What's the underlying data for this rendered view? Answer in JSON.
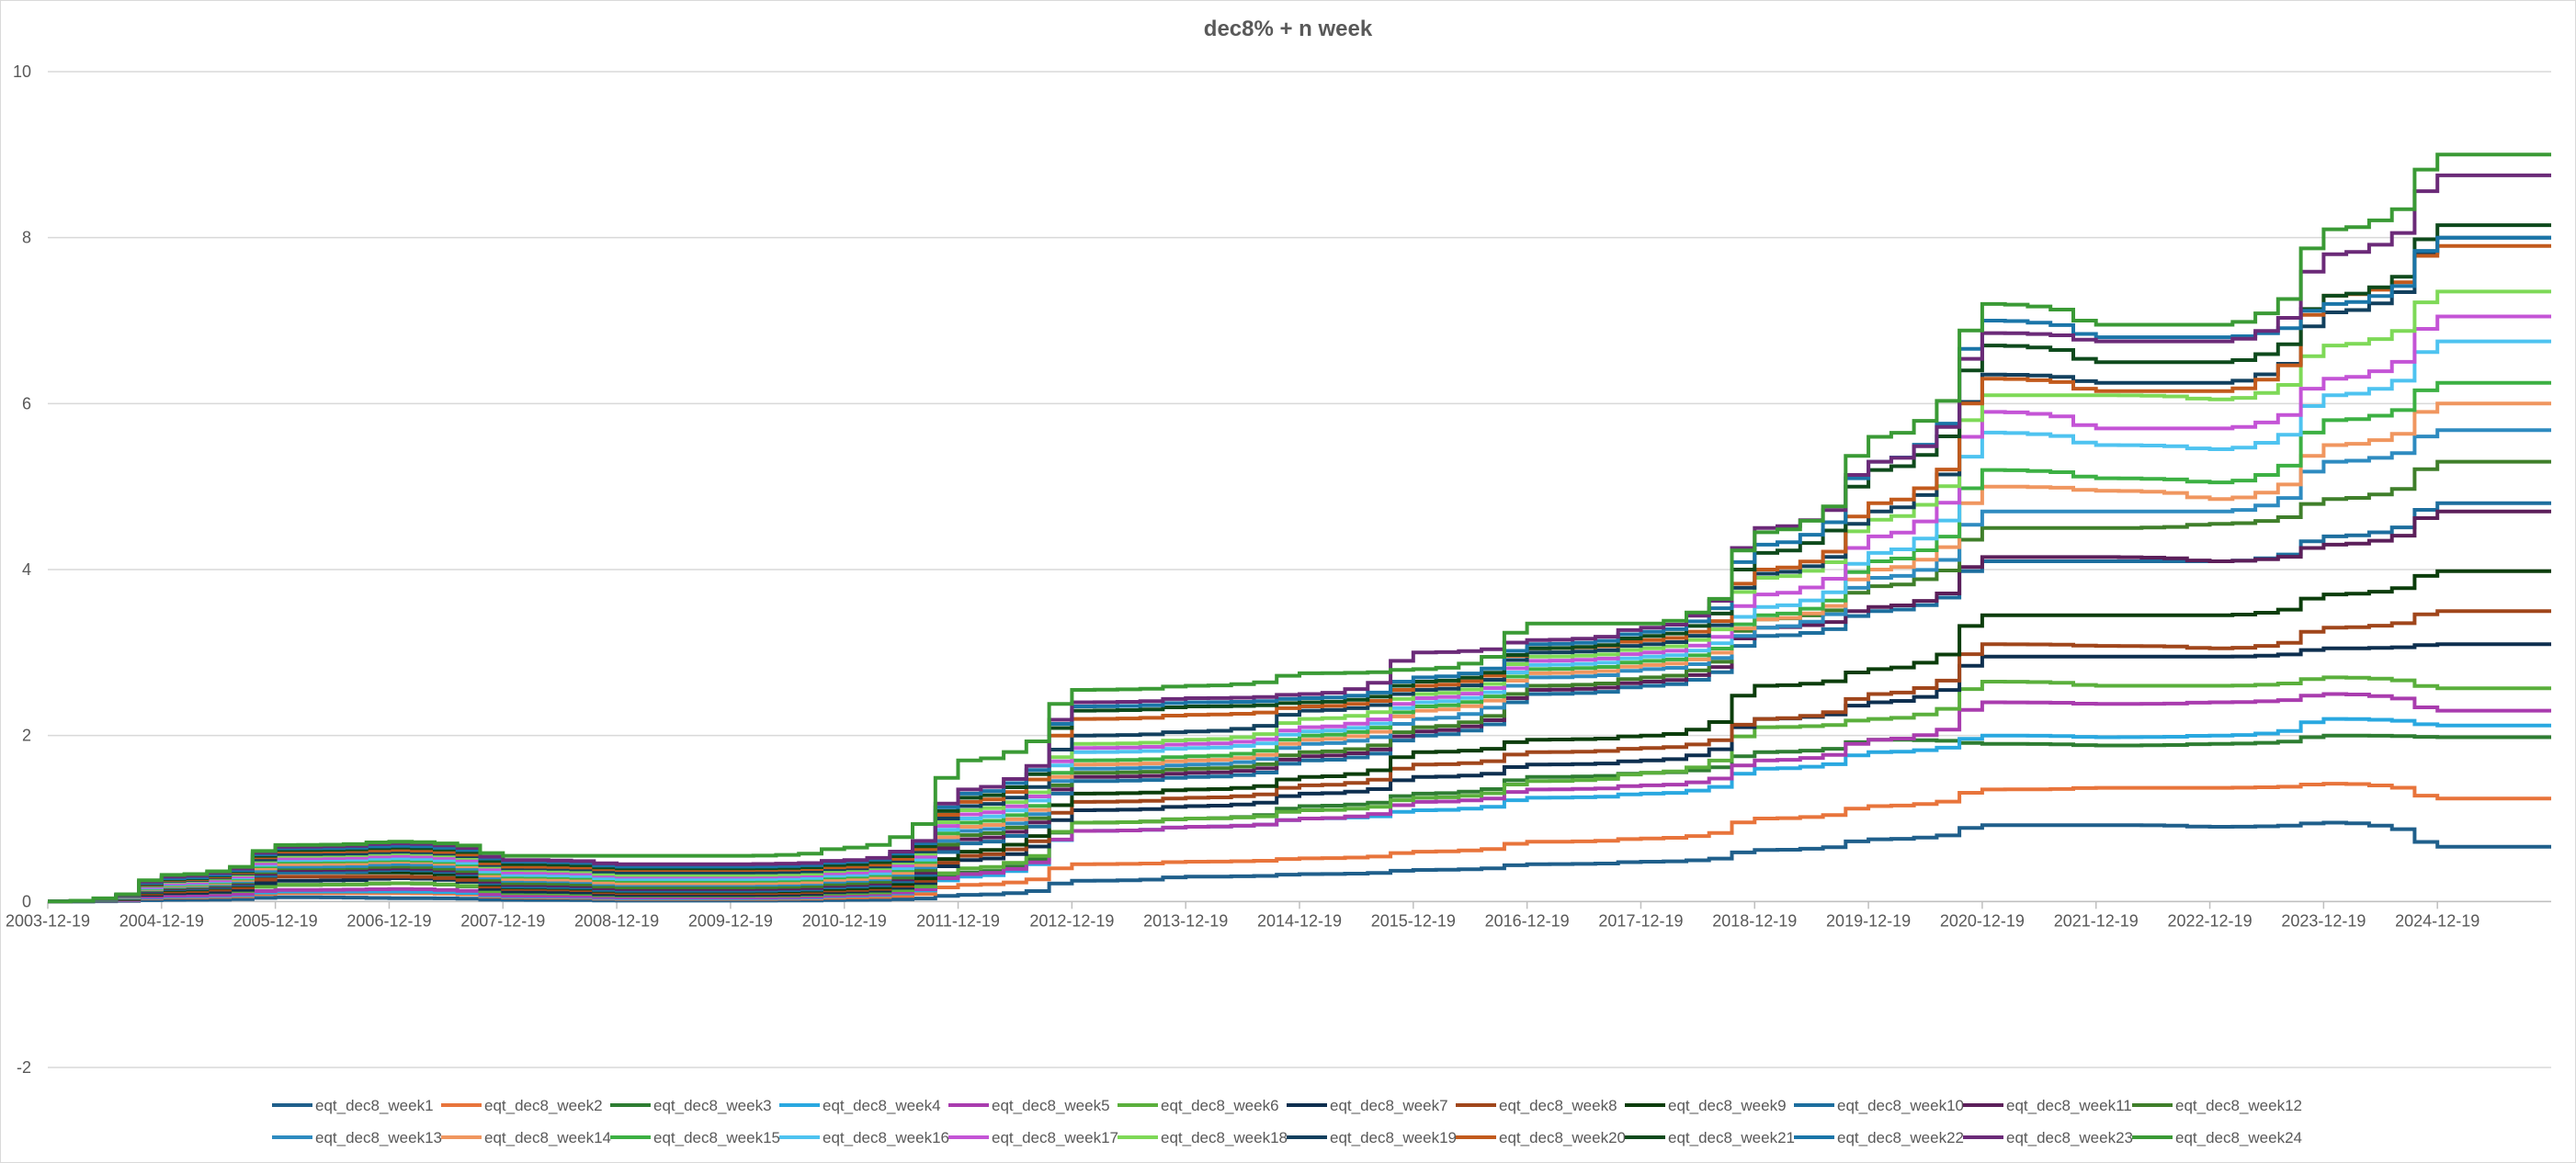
{
  "chart_data": {
    "type": "line",
    "title": "dec8% + n week",
    "xlabel": "",
    "ylabel": "",
    "ylim": [
      -2,
      10
    ],
    "yticks": [
      -2,
      0,
      2,
      4,
      6,
      8,
      10
    ],
    "x_start": "2003-12-19",
    "x_end": "2025-12-19",
    "xticks": [
      "2003-12-19",
      "2004-12-19",
      "2005-12-19",
      "2006-12-19",
      "2007-12-19",
      "2008-12-19",
      "2009-12-19",
      "2010-12-19",
      "2011-12-19",
      "2012-12-19",
      "2013-12-19",
      "2014-12-19",
      "2015-12-19",
      "2016-12-19",
      "2017-12-19",
      "2018-12-19",
      "2019-12-19",
      "2020-12-19",
      "2021-12-19",
      "2022-12-19",
      "2023-12-19",
      "2024-12-19"
    ],
    "grid": true,
    "legend": "bottom",
    "colors": [
      "#1f5f8b",
      "#e8743b",
      "#2e7d32",
      "#29a8e0",
      "#a93cae",
      "#5aaf3c",
      "#0d2f4f",
      "#a0461b",
      "#0b3d0b",
      "#1d6e9e",
      "#5c1f5a",
      "#3f7f2a",
      "#2e8bc0",
      "#f0965f",
      "#3cb043",
      "#4ec3f0",
      "#c454d6",
      "#7ed957",
      "#12405e",
      "#c25a1c",
      "#0e4a1c",
      "#1a75a8",
      "#6b2a78",
      "#3a9a35"
    ],
    "series": [
      {
        "name": "eqt_dec8_week1",
        "values": [
          0,
          0.02,
          0.05,
          0.04,
          0.02,
          0.01,
          0.01,
          0.02,
          0.08,
          0.25,
          0.3,
          0.33,
          0.38,
          0.45,
          0.48,
          0.62,
          0.75,
          0.92,
          0.92,
          0.9,
          0.95,
          0.66
        ]
      },
      {
        "name": "eqt_dec8_week2",
        "values": [
          0,
          0.05,
          0.1,
          0.1,
          0.05,
          0.03,
          0.03,
          0.05,
          0.2,
          0.45,
          0.48,
          0.52,
          0.6,
          0.72,
          0.76,
          1.0,
          1.15,
          1.35,
          1.37,
          1.37,
          1.42,
          1.24
        ]
      },
      {
        "name": "eqt_dec8_week3",
        "values": [
          0,
          0.08,
          0.2,
          0.22,
          0.08,
          0.05,
          0.05,
          0.08,
          0.35,
          0.95,
          1.0,
          1.15,
          1.3,
          1.5,
          1.55,
          1.8,
          1.95,
          1.9,
          1.88,
          1.9,
          2.0,
          1.98
        ]
      },
      {
        "name": "eqt_dec8_week4",
        "values": [
          0,
          0.06,
          0.12,
          0.12,
          0.06,
          0.04,
          0.04,
          0.07,
          0.3,
          0.85,
          0.9,
          1.0,
          1.1,
          1.25,
          1.3,
          1.6,
          1.8,
          2.0,
          1.98,
          2.0,
          2.2,
          2.12
        ]
      },
      {
        "name": "eqt_dec8_week5",
        "values": [
          0,
          0.07,
          0.14,
          0.15,
          0.07,
          0.05,
          0.05,
          0.08,
          0.33,
          0.85,
          0.9,
          1.0,
          1.2,
          1.35,
          1.4,
          1.7,
          1.95,
          2.4,
          2.38,
          2.4,
          2.5,
          2.3
        ]
      },
      {
        "name": "eqt_dec8_week6",
        "values": [
          0,
          0.1,
          0.2,
          0.22,
          0.1,
          0.07,
          0.07,
          0.1,
          0.4,
          0.95,
          1.0,
          1.1,
          1.25,
          1.45,
          1.55,
          2.1,
          2.2,
          2.65,
          2.6,
          2.6,
          2.7,
          2.57
        ]
      },
      {
        "name": "eqt_dec8_week7",
        "values": [
          0,
          0.1,
          0.25,
          0.28,
          0.12,
          0.08,
          0.08,
          0.12,
          0.5,
          1.1,
          1.15,
          1.3,
          1.5,
          1.65,
          1.7,
          2.2,
          2.4,
          2.95,
          2.95,
          2.95,
          3.05,
          3.1
        ]
      },
      {
        "name": "eqt_dec8_week8",
        "values": [
          0,
          0.12,
          0.3,
          0.3,
          0.15,
          0.1,
          0.1,
          0.14,
          0.55,
          1.2,
          1.25,
          1.4,
          1.65,
          1.8,
          1.85,
          2.2,
          2.5,
          3.1,
          3.08,
          3.05,
          3.3,
          3.5
        ]
      },
      {
        "name": "eqt_dec8_week9",
        "values": [
          0,
          0.14,
          0.35,
          0.35,
          0.17,
          0.12,
          0.12,
          0.16,
          0.6,
          1.3,
          1.35,
          1.5,
          1.8,
          1.95,
          2.0,
          2.6,
          2.8,
          3.45,
          3.45,
          3.45,
          3.7,
          3.98
        ]
      },
      {
        "name": "eqt_dec8_week10",
        "values": [
          0,
          0.15,
          0.35,
          0.38,
          0.18,
          0.13,
          0.13,
          0.18,
          0.7,
          1.45,
          1.5,
          1.7,
          2.0,
          2.5,
          2.6,
          3.2,
          3.5,
          4.1,
          4.1,
          4.1,
          4.4,
          4.8
        ]
      },
      {
        "name": "eqt_dec8_week11",
        "values": [
          0,
          0.16,
          0.38,
          0.4,
          0.2,
          0.15,
          0.15,
          0.2,
          0.75,
          1.5,
          1.55,
          1.75,
          2.05,
          2.55,
          2.65,
          3.3,
          3.55,
          4.15,
          4.15,
          4.1,
          4.3,
          4.7
        ]
      },
      {
        "name": "eqt_dec8_week12",
        "values": [
          0,
          0.17,
          0.4,
          0.42,
          0.22,
          0.17,
          0.17,
          0.22,
          0.8,
          1.55,
          1.6,
          1.8,
          2.1,
          2.6,
          2.7,
          3.4,
          3.8,
          4.5,
          4.5,
          4.55,
          4.85,
          5.3
        ]
      },
      {
        "name": "eqt_dec8_week13",
        "values": [
          0,
          0.18,
          0.42,
          0.45,
          0.25,
          0.2,
          0.2,
          0.25,
          0.85,
          1.6,
          1.65,
          1.9,
          2.2,
          2.7,
          2.8,
          3.3,
          3.9,
          4.7,
          4.7,
          4.7,
          5.3,
          5.68
        ]
      },
      {
        "name": "eqt_dec8_week14",
        "values": [
          0,
          0.19,
          0.45,
          0.48,
          0.27,
          0.22,
          0.22,
          0.27,
          0.9,
          1.65,
          1.7,
          1.95,
          2.3,
          2.75,
          2.85,
          3.4,
          4.0,
          5.0,
          4.95,
          4.85,
          5.5,
          6.0
        ]
      },
      {
        "name": "eqt_dec8_week15",
        "values": [
          0,
          0.2,
          0.48,
          0.5,
          0.3,
          0.25,
          0.25,
          0.3,
          0.95,
          1.7,
          1.75,
          2.0,
          2.35,
          2.8,
          2.9,
          3.45,
          4.1,
          5.2,
          5.1,
          5.05,
          5.8,
          6.25
        ]
      },
      {
        "name": "eqt_dec8_week16",
        "values": [
          0,
          0.21,
          0.5,
          0.52,
          0.32,
          0.27,
          0.27,
          0.32,
          1.0,
          1.8,
          1.85,
          2.05,
          2.4,
          2.85,
          2.95,
          3.55,
          4.2,
          5.65,
          5.5,
          5.45,
          6.1,
          6.75
        ]
      },
      {
        "name": "eqt_dec8_week17",
        "values": [
          0,
          0.22,
          0.52,
          0.55,
          0.35,
          0.3,
          0.3,
          0.35,
          1.05,
          1.85,
          1.9,
          2.1,
          2.45,
          2.9,
          3.0,
          3.7,
          4.4,
          5.9,
          5.7,
          5.7,
          6.3,
          7.05
        ]
      },
      {
        "name": "eqt_dec8_week18",
        "values": [
          0,
          0.24,
          0.55,
          0.58,
          0.38,
          0.32,
          0.32,
          0.38,
          1.1,
          1.9,
          1.95,
          2.2,
          2.5,
          2.95,
          3.05,
          3.9,
          4.6,
          6.1,
          6.1,
          6.05,
          6.7,
          7.35
        ]
      },
      {
        "name": "eqt_dec8_week19",
        "values": [
          0,
          0.25,
          0.57,
          0.6,
          0.4,
          0.35,
          0.35,
          0.4,
          1.15,
          2.0,
          2.05,
          2.3,
          2.55,
          3.0,
          3.1,
          3.95,
          4.7,
          6.35,
          6.25,
          6.25,
          7.1,
          8.0
        ]
      },
      {
        "name": "eqt_dec8_week20",
        "values": [
          0,
          0.26,
          0.6,
          0.62,
          0.42,
          0.38,
          0.38,
          0.42,
          1.2,
          2.2,
          2.25,
          2.35,
          2.6,
          3.05,
          3.15,
          4.0,
          4.8,
          6.3,
          6.15,
          6.15,
          7.3,
          7.9
        ]
      },
      {
        "name": "eqt_dec8_week21",
        "values": [
          0,
          0.27,
          0.62,
          0.65,
          0.45,
          0.4,
          0.4,
          0.45,
          1.25,
          2.3,
          2.35,
          2.4,
          2.65,
          3.05,
          3.2,
          4.2,
          5.2,
          6.7,
          6.5,
          6.5,
          7.3,
          8.15
        ]
      },
      {
        "name": "eqt_dec8_week22",
        "values": [
          0,
          0.28,
          0.64,
          0.67,
          0.48,
          0.42,
          0.42,
          0.48,
          1.3,
          2.35,
          2.4,
          2.45,
          2.7,
          3.1,
          3.25,
          4.3,
          5.3,
          7.0,
          6.8,
          6.8,
          7.2,
          8.0
        ]
      },
      {
        "name": "eqt_dec8_week23",
        "values": [
          0,
          0.3,
          0.66,
          0.7,
          0.5,
          0.45,
          0.45,
          0.5,
          1.35,
          2.4,
          2.45,
          2.5,
          3.0,
          3.15,
          3.3,
          4.5,
          5.3,
          6.85,
          6.75,
          6.75,
          7.8,
          8.75
        ]
      },
      {
        "name": "eqt_dec8_week24",
        "values": [
          0,
          0.32,
          0.68,
          0.72,
          0.55,
          0.55,
          0.55,
          0.65,
          1.7,
          2.55,
          2.6,
          2.75,
          2.8,
          3.35,
          3.35,
          4.45,
          5.6,
          7.2,
          6.95,
          6.95,
          8.1,
          9.0
        ]
      }
    ]
  }
}
